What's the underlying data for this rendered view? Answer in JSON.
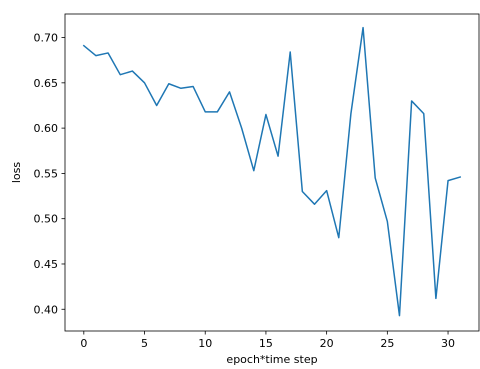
{
  "chart_data": {
    "type": "line",
    "title": "",
    "xlabel": "epoch*time step",
    "ylabel": "loss",
    "xlim": [
      -1.55,
      32.55
    ],
    "ylim": [
      0.376,
      0.726
    ],
    "grid": false,
    "legend": "none",
    "xticks": [
      0,
      5,
      10,
      15,
      20,
      25,
      30
    ],
    "yticks": [
      0.4,
      0.45,
      0.5,
      0.55,
      0.6,
      0.65,
      0.7
    ],
    "series": [
      {
        "color": "#1f77b4",
        "x": [
          0,
          1,
          2,
          3,
          4,
          5,
          6,
          7,
          8,
          9,
          10,
          11,
          12,
          13,
          14,
          15,
          16,
          17,
          18,
          19,
          20,
          21,
          22,
          23,
          24,
          25,
          26,
          27,
          28,
          29,
          30,
          31
        ],
        "values": [
          0.691,
          0.68,
          0.683,
          0.659,
          0.663,
          0.65,
          0.625,
          0.649,
          0.644,
          0.646,
          0.618,
          0.618,
          0.64,
          0.6,
          0.553,
          0.615,
          0.569,
          0.684,
          0.53,
          0.516,
          0.531,
          0.479,
          0.616,
          0.711,
          0.545,
          0.497,
          0.393,
          0.63,
          0.616,
          0.412,
          0.542,
          0.546
        ]
      }
    ]
  }
}
